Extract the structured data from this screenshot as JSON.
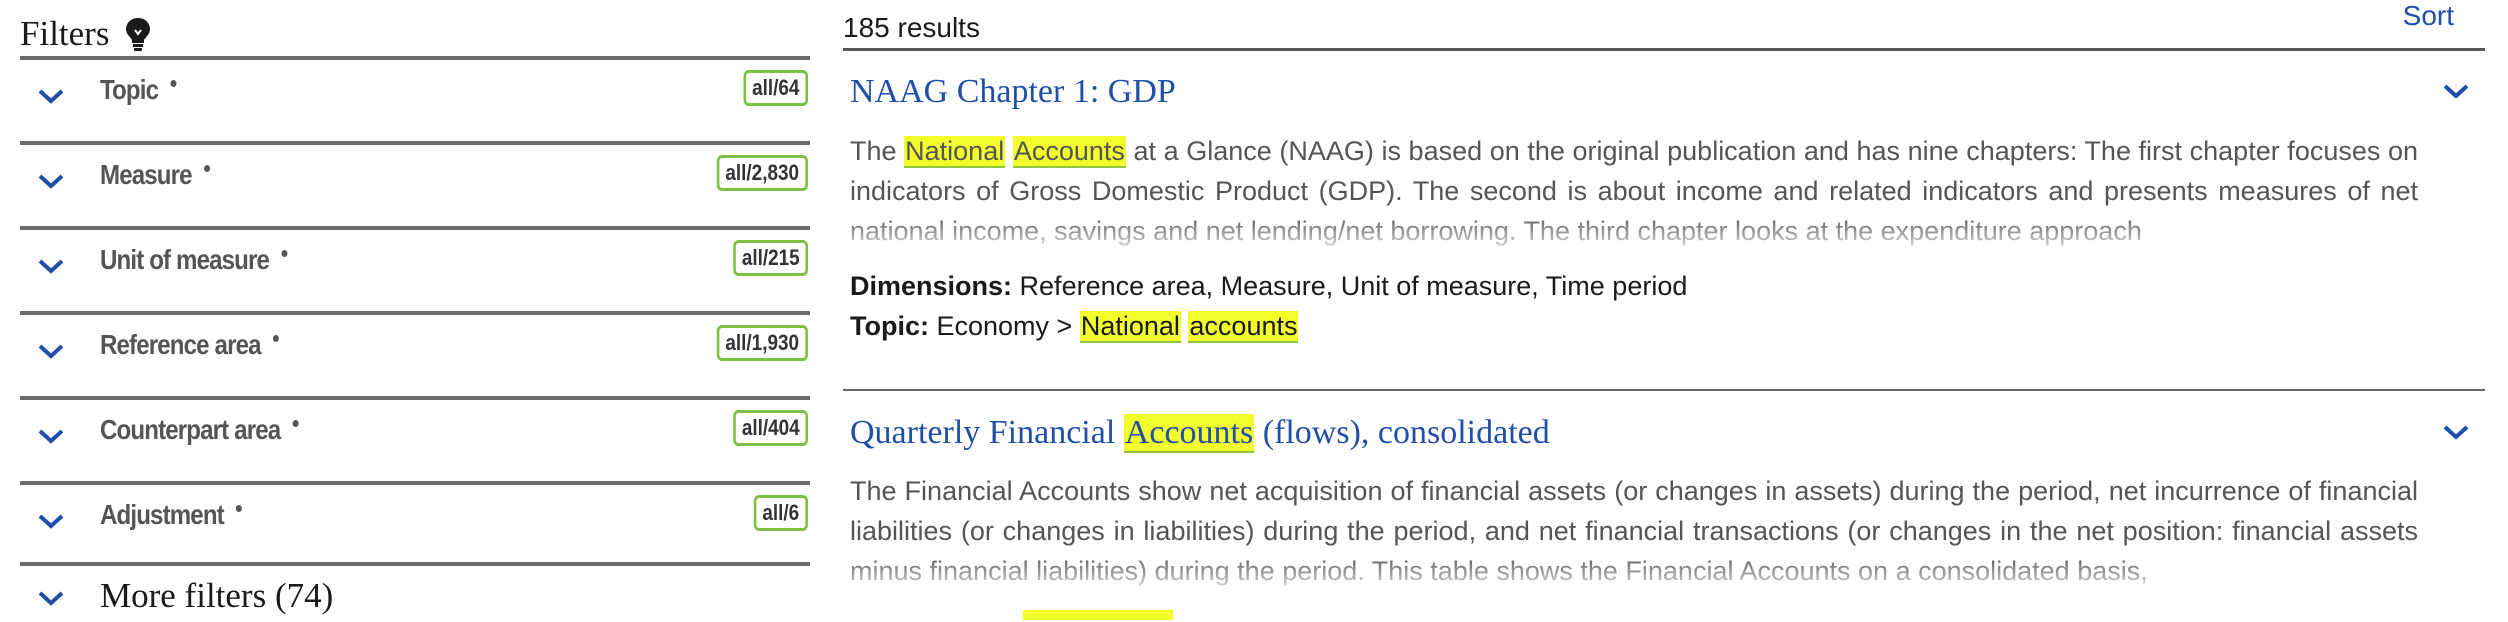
{
  "filters": {
    "title": "Filters",
    "icon": "lightbulb-icon",
    "items": [
      {
        "label": "Topic",
        "count": "all/64"
      },
      {
        "label": "Measure",
        "count": "all/2,830"
      },
      {
        "label": "Unit of measure",
        "count": "all/215"
      },
      {
        "label": "Reference area",
        "count": "all/1,930"
      },
      {
        "label": "Counterpart area",
        "count": "all/404"
      },
      {
        "label": "Adjustment",
        "count": "all/6"
      }
    ],
    "more_label": "More filters (74)"
  },
  "results": {
    "count_label": "185 results",
    "sort_label": "Sort",
    "items": [
      {
        "title_parts": [
          "NAAG Chapter 1: GDP"
        ],
        "description_parts": [
          "The ",
          "National",
          " ",
          "Accounts",
          " at a Glance (NAAG) is based on the original publication and has nine chapters: The first chapter focuses on indicators of Gross Domestic Product (GDP). The second is about income and related indicators and presents measures of net national income, savings and net lending/net borrowing. The third chapter looks at the expenditure approach"
        ],
        "dimensions_label": "Dimensions:",
        "dimensions_value": "Reference area, Measure, Unit of measure, Time period",
        "topic_label": "Topic:",
        "topic_prefix": "Economy > ",
        "topic_hl1": "National",
        "topic_hl2": "accounts"
      },
      {
        "title_before": "Quarterly Financial ",
        "title_hl": "Accounts",
        "title_after": " (flows), consolidated",
        "description": "The Financial Accounts show net acquisition of financial assets (or changes in assets) during the period, net incurrence of financial liabilities (or changes in liabilities) during the period, and net financial transactions (or changes in the net position: financial assets minus financial liabilities) during the period. This table shows the Financial Accounts on a consolidated basis,"
      }
    ]
  },
  "colors": {
    "link_blue": "#1f4fa8",
    "highlight_yellow": "#f3ff2b",
    "badge_green": "#7ec043",
    "rule_gray": "#6b6b6b"
  }
}
